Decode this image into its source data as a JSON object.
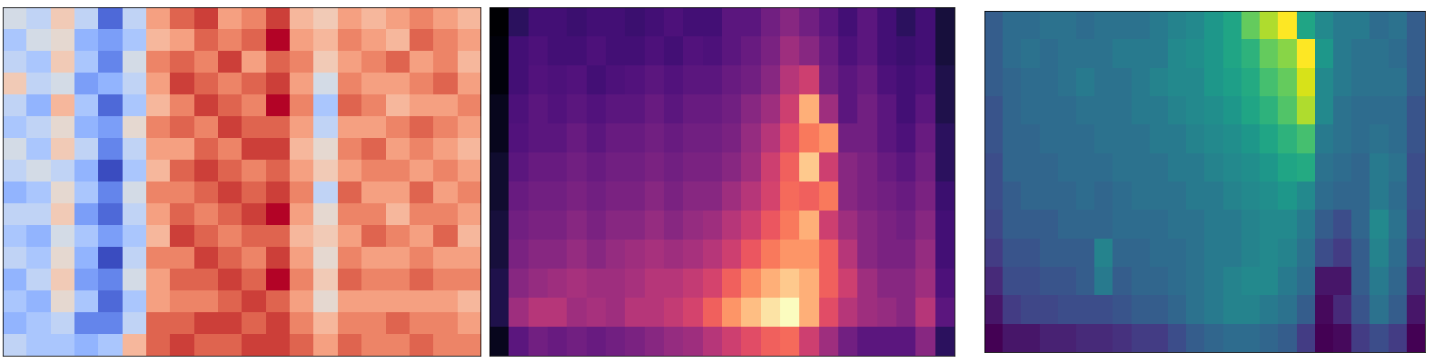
{
  "chart_data": [
    {
      "type": "heatmap",
      "tick_labels": false,
      "color": "coolwarm",
      "cells": [
        [
          -0.1,
          -0.2,
          0.1,
          -0.2,
          -0.7,
          -0.2,
          0.3,
          0.5,
          0.6,
          0.3,
          0.4,
          0.6,
          0.2,
          0.1,
          0.3,
          0.2,
          0.3,
          0.4,
          0.3,
          0.2
        ],
        [
          -0.3,
          -0.1,
          0.0,
          -0.4,
          -0.5,
          -0.3,
          0.2,
          0.3,
          0.5,
          0.4,
          0.5,
          0.7,
          0.3,
          0.2,
          0.4,
          0.3,
          0.2,
          0.5,
          0.4,
          0.3
        ],
        [
          -0.2,
          -0.3,
          0.1,
          -0.3,
          -0.6,
          -0.1,
          0.4,
          0.5,
          0.4,
          0.6,
          0.3,
          0.5,
          0.4,
          0.1,
          0.3,
          0.4,
          0.5,
          0.3,
          0.4,
          0.2
        ],
        [
          0.1,
          -0.2,
          -0.1,
          -0.5,
          -0.4,
          -0.2,
          0.3,
          0.6,
          0.5,
          0.4,
          0.5,
          0.6,
          0.3,
          -0.1,
          0.4,
          0.3,
          0.3,
          0.4,
          0.5,
          0.3
        ],
        [
          -0.2,
          -0.4,
          0.2,
          -0.3,
          -0.7,
          -0.3,
          0.2,
          0.4,
          0.6,
          0.5,
          0.4,
          0.7,
          0.4,
          -0.3,
          0.5,
          0.4,
          0.2,
          0.3,
          0.3,
          0.4
        ],
        [
          -0.3,
          -0.2,
          0.0,
          -0.4,
          -0.5,
          0.0,
          0.4,
          0.5,
          0.4,
          0.6,
          0.5,
          0.5,
          0.3,
          -0.2,
          0.3,
          0.3,
          0.4,
          0.5,
          0.4,
          0.3
        ],
        [
          -0.1,
          -0.3,
          0.1,
          -0.2,
          -0.6,
          -0.2,
          0.3,
          0.3,
          0.5,
          0.4,
          0.6,
          0.6,
          0.2,
          0.0,
          0.4,
          0.5,
          0.3,
          0.4,
          0.3,
          0.2
        ],
        [
          -0.2,
          -0.1,
          -0.2,
          -0.4,
          -0.8,
          -0.3,
          0.2,
          0.5,
          0.6,
          0.5,
          0.4,
          0.5,
          0.3,
          0.1,
          0.3,
          0.4,
          0.4,
          0.3,
          0.4,
          0.3
        ],
        [
          -0.4,
          -0.3,
          0.0,
          -0.3,
          -0.6,
          -0.1,
          0.4,
          0.4,
          0.5,
          0.6,
          0.5,
          0.6,
          0.4,
          -0.2,
          0.5,
          0.3,
          0.3,
          0.5,
          0.3,
          0.4
        ],
        [
          -0.2,
          -0.2,
          0.1,
          -0.5,
          -0.7,
          -0.2,
          0.3,
          0.5,
          0.4,
          0.5,
          0.6,
          0.7,
          0.3,
          0.0,
          0.4,
          0.4,
          0.2,
          0.4,
          0.4,
          0.3
        ],
        [
          -0.3,
          -0.4,
          -0.1,
          -0.3,
          -0.5,
          -0.3,
          0.2,
          0.6,
          0.5,
          0.4,
          0.5,
          0.5,
          0.2,
          0.1,
          0.3,
          0.5,
          0.4,
          0.3,
          0.5,
          0.2
        ],
        [
          -0.2,
          -0.3,
          0.0,
          -0.4,
          -0.8,
          -0.2,
          0.4,
          0.4,
          0.6,
          0.5,
          0.4,
          0.6,
          0.3,
          0.0,
          0.4,
          0.3,
          0.3,
          0.4,
          0.3,
          0.3
        ],
        [
          -0.4,
          -0.2,
          0.1,
          -0.5,
          -0.6,
          -0.1,
          0.3,
          0.5,
          0.5,
          0.6,
          0.5,
          0.7,
          0.4,
          0.1,
          0.5,
          0.4,
          0.4,
          0.5,
          0.4,
          0.4
        ],
        [
          -0.3,
          -0.4,
          0.0,
          -0.3,
          -0.7,
          -0.3,
          0.3,
          0.4,
          0.4,
          0.5,
          0.6,
          0.5,
          0.3,
          0.0,
          0.3,
          0.3,
          0.3,
          0.3,
          0.3,
          0.2
        ],
        [
          -0.4,
          -0.3,
          -0.2,
          -0.6,
          -0.6,
          -0.2,
          0.5,
          0.5,
          0.6,
          0.6,
          0.5,
          0.6,
          0.4,
          0.2,
          0.4,
          0.4,
          0.5,
          0.4,
          0.4,
          0.3
        ],
        [
          -0.2,
          -0.3,
          -0.3,
          -0.4,
          -0.3,
          0.2,
          0.5,
          0.6,
          0.5,
          0.5,
          0.6,
          0.6,
          0.5,
          0.3,
          0.5,
          0.4,
          0.4,
          0.5,
          0.4,
          0.4
        ]
      ]
    },
    {
      "type": "heatmap",
      "tick_labels": false,
      "color": "magma",
      "cells": [
        [
          0.1,
          0.25,
          0.3,
          0.3,
          0.28,
          0.3,
          0.3,
          0.28,
          0.3,
          0.32,
          0.3,
          0.3,
          0.35,
          0.35,
          0.4,
          0.45,
          0.4,
          0.35,
          0.3,
          0.35,
          0.3,
          0.25,
          0.3,
          0.2
        ],
        [
          0.12,
          0.3,
          0.32,
          0.3,
          0.3,
          0.32,
          0.3,
          0.3,
          0.32,
          0.3,
          0.33,
          0.32,
          0.35,
          0.38,
          0.42,
          0.5,
          0.45,
          0.38,
          0.32,
          0.35,
          0.3,
          0.28,
          0.3,
          0.2
        ],
        [
          0.12,
          0.3,
          0.33,
          0.32,
          0.33,
          0.3,
          0.32,
          0.33,
          0.35,
          0.33,
          0.35,
          0.35,
          0.38,
          0.4,
          0.45,
          0.55,
          0.6,
          0.4,
          0.35,
          0.38,
          0.32,
          0.3,
          0.32,
          0.22
        ],
        [
          0.15,
          0.32,
          0.35,
          0.33,
          0.35,
          0.33,
          0.35,
          0.35,
          0.38,
          0.35,
          0.38,
          0.38,
          0.4,
          0.45,
          0.5,
          0.6,
          0.85,
          0.5,
          0.35,
          0.4,
          0.35,
          0.3,
          0.35,
          0.22
        ],
        [
          0.15,
          0.33,
          0.35,
          0.35,
          0.38,
          0.35,
          0.38,
          0.38,
          0.4,
          0.38,
          0.4,
          0.4,
          0.42,
          0.48,
          0.55,
          0.65,
          0.75,
          0.8,
          0.4,
          0.4,
          0.35,
          0.32,
          0.38,
          0.25
        ],
        [
          0.18,
          0.35,
          0.38,
          0.38,
          0.4,
          0.38,
          0.4,
          0.4,
          0.42,
          0.4,
          0.42,
          0.42,
          0.45,
          0.5,
          0.6,
          0.7,
          0.9,
          0.6,
          0.45,
          0.42,
          0.38,
          0.35,
          0.4,
          0.25
        ],
        [
          0.18,
          0.38,
          0.4,
          0.4,
          0.42,
          0.4,
          0.42,
          0.42,
          0.45,
          0.42,
          0.45,
          0.45,
          0.5,
          0.55,
          0.62,
          0.72,
          0.7,
          0.75,
          0.45,
          0.42,
          0.4,
          0.38,
          0.42,
          0.28
        ],
        [
          0.2,
          0.4,
          0.42,
          0.42,
          0.45,
          0.42,
          0.45,
          0.45,
          0.48,
          0.45,
          0.48,
          0.5,
          0.55,
          0.6,
          0.68,
          0.75,
          0.85,
          0.6,
          0.5,
          0.45,
          0.42,
          0.4,
          0.45,
          0.3
        ],
        [
          0.2,
          0.42,
          0.45,
          0.45,
          0.48,
          0.45,
          0.48,
          0.5,
          0.52,
          0.5,
          0.52,
          0.55,
          0.6,
          0.68,
          0.75,
          0.8,
          0.8,
          0.7,
          0.55,
          0.45,
          0.42,
          0.42,
          0.48,
          0.3
        ],
        [
          0.22,
          0.45,
          0.48,
          0.5,
          0.52,
          0.5,
          0.5,
          0.52,
          0.55,
          0.55,
          0.58,
          0.62,
          0.7,
          0.78,
          0.85,
          0.9,
          0.85,
          0.7,
          0.6,
          0.5,
          0.45,
          0.45,
          0.5,
          0.32
        ],
        [
          0.22,
          0.5,
          0.55,
          0.55,
          0.5,
          0.52,
          0.5,
          0.55,
          0.55,
          0.58,
          0.62,
          0.7,
          0.8,
          0.88,
          0.95,
          1.0,
          0.85,
          0.65,
          0.55,
          0.5,
          0.48,
          0.45,
          0.55,
          0.35
        ],
        [
          0.15,
          0.35,
          0.4,
          0.38,
          0.4,
          0.38,
          0.4,
          0.42,
          0.45,
          0.48,
          0.5,
          0.55,
          0.6,
          0.65,
          0.7,
          0.72,
          0.6,
          0.5,
          0.4,
          0.35,
          0.35,
          0.35,
          0.45,
          0.25
        ]
      ]
    },
    {
      "type": "heatmap",
      "tick_labels": false,
      "color": "viridis",
      "cells": [
        [
          0.35,
          0.4,
          0.4,
          0.42,
          0.42,
          0.4,
          0.42,
          0.42,
          0.42,
          0.45,
          0.48,
          0.5,
          0.55,
          0.6,
          0.75,
          0.85,
          0.95,
          0.6,
          0.5,
          0.45,
          0.45,
          0.4,
          0.42,
          0.35
        ],
        [
          0.35,
          0.4,
          0.42,
          0.4,
          0.42,
          0.42,
          0.42,
          0.45,
          0.45,
          0.45,
          0.5,
          0.52,
          0.55,
          0.6,
          0.65,
          0.75,
          0.8,
          0.95,
          0.55,
          0.45,
          0.42,
          0.42,
          0.4,
          0.35
        ],
        [
          0.35,
          0.38,
          0.4,
          0.4,
          0.42,
          0.45,
          0.42,
          0.42,
          0.45,
          0.48,
          0.5,
          0.5,
          0.55,
          0.58,
          0.62,
          0.7,
          0.75,
          0.9,
          0.5,
          0.45,
          0.42,
          0.42,
          0.42,
          0.35
        ],
        [
          0.32,
          0.38,
          0.4,
          0.4,
          0.4,
          0.42,
          0.42,
          0.42,
          0.45,
          0.45,
          0.48,
          0.5,
          0.52,
          0.55,
          0.6,
          0.65,
          0.72,
          0.85,
          0.5,
          0.42,
          0.4,
          0.4,
          0.4,
          0.32
        ],
        [
          0.32,
          0.38,
          0.38,
          0.4,
          0.4,
          0.4,
          0.42,
          0.42,
          0.42,
          0.45,
          0.45,
          0.48,
          0.5,
          0.52,
          0.55,
          0.6,
          0.65,
          0.7,
          0.45,
          0.42,
          0.4,
          0.42,
          0.4,
          0.32
        ],
        [
          0.3,
          0.38,
          0.38,
          0.38,
          0.4,
          0.4,
          0.4,
          0.42,
          0.42,
          0.42,
          0.45,
          0.45,
          0.48,
          0.5,
          0.52,
          0.55,
          0.6,
          0.62,
          0.42,
          0.4,
          0.38,
          0.45,
          0.42,
          0.3
        ],
        [
          0.3,
          0.35,
          0.38,
          0.38,
          0.38,
          0.4,
          0.38,
          0.4,
          0.42,
          0.42,
          0.42,
          0.45,
          0.45,
          0.48,
          0.5,
          0.52,
          0.55,
          0.5,
          0.4,
          0.38,
          0.38,
          0.45,
          0.4,
          0.3
        ],
        [
          0.28,
          0.35,
          0.35,
          0.35,
          0.38,
          0.38,
          0.38,
          0.4,
          0.4,
          0.4,
          0.42,
          0.42,
          0.45,
          0.45,
          0.48,
          0.5,
          0.5,
          0.45,
          0.35,
          0.3,
          0.38,
          0.5,
          0.42,
          0.28
        ],
        [
          0.25,
          0.32,
          0.32,
          0.35,
          0.35,
          0.35,
          0.48,
          0.38,
          0.38,
          0.4,
          0.4,
          0.42,
          0.45,
          0.45,
          0.48,
          0.5,
          0.48,
          0.42,
          0.3,
          0.25,
          0.35,
          0.48,
          0.4,
          0.25
        ],
        [
          0.2,
          0.3,
          0.3,
          0.32,
          0.32,
          0.35,
          0.45,
          0.35,
          0.38,
          0.38,
          0.4,
          0.42,
          0.45,
          0.48,
          0.5,
          0.5,
          0.45,
          0.4,
          0.15,
          0.15,
          0.35,
          0.45,
          0.38,
          0.2
        ],
        [
          0.15,
          0.25,
          0.28,
          0.28,
          0.3,
          0.3,
          0.3,
          0.32,
          0.35,
          0.35,
          0.38,
          0.42,
          0.45,
          0.48,
          0.48,
          0.45,
          0.42,
          0.35,
          0.12,
          0.2,
          0.32,
          0.42,
          0.35,
          0.15
        ],
        [
          0.1,
          0.15,
          0.15,
          0.18,
          0.18,
          0.2,
          0.2,
          0.22,
          0.25,
          0.25,
          0.3,
          0.35,
          0.38,
          0.4,
          0.4,
          0.38,
          0.35,
          0.25,
          0.1,
          0.12,
          0.25,
          0.3,
          0.25,
          0.1
        ]
      ]
    }
  ]
}
